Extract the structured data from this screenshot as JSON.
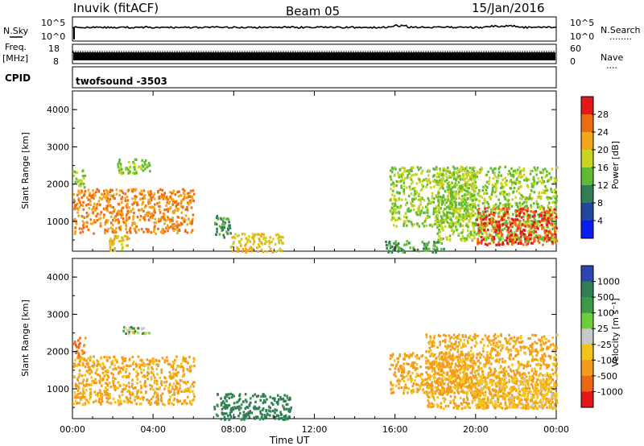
{
  "header": {
    "station": "Inuvik (fitACF)",
    "beam": "Beam 05",
    "date": "15/Jan/2016"
  },
  "strip_labels": {
    "nsky": "N.Sky",
    "nsky_top": "10^5",
    "nsky_bottom": "10^0",
    "nsearch": "N.Search",
    "nsearch_dots": "........",
    "nsearch_top": "10^5",
    "nsearch_bottom": "10^0",
    "freq_line1": "Freq.",
    "freq_line2": "[MHz]",
    "freq_top": "18",
    "freq_bottom": "8",
    "nave": "Nave",
    "nave_dots": "....",
    "nave_top": "60",
    "nave_bottom": "0",
    "cpid": "CPID",
    "cpid_value": "twofsound -3503"
  },
  "colors": {
    "noise_line": "#000000",
    "frame": "#000000"
  },
  "chart_data": [
    {
      "type": "heatmap",
      "title": "",
      "xlabel": "",
      "ylabel": "Slant Range [km]",
      "x_ticks": [
        "00:00",
        "04:00",
        "08:00",
        "12:00",
        "16:00",
        "20:00",
        "00:00"
      ],
      "y_ticks": [
        "1000",
        "2000",
        "3000",
        "4000"
      ],
      "ylim": [
        200,
        4500
      ],
      "colorbar": {
        "label": "Power [dB]",
        "ticks": [
          "4",
          "8",
          "12",
          "16",
          "20",
          "24",
          "28"
        ],
        "colors": [
          "#0a1cf0",
          "#23469d",
          "#2f7e54",
          "#60bb34",
          "#c9d422",
          "#f3a51b",
          "#f06a12",
          "#e41818"
        ]
      },
      "regions": [
        {
          "t0": 0.0,
          "t1": 6.0,
          "r0": 700,
          "r1": 1900,
          "value": 24
        },
        {
          "t0": 0.0,
          "t1": 0.6,
          "r0": 1900,
          "r1": 2400,
          "value": 16
        },
        {
          "t0": 1.8,
          "t1": 2.8,
          "r0": 250,
          "r1": 650,
          "value": 20
        },
        {
          "t0": 2.2,
          "t1": 3.8,
          "r0": 2300,
          "r1": 2700,
          "value": 16
        },
        {
          "t0": 7.0,
          "t1": 7.8,
          "r0": 600,
          "r1": 1200,
          "value": 12
        },
        {
          "t0": 7.8,
          "t1": 10.4,
          "r0": 200,
          "r1": 700,
          "value": 20
        },
        {
          "t0": 15.5,
          "t1": 18.5,
          "r0": 200,
          "r1": 500,
          "value": 12
        },
        {
          "t0": 15.7,
          "t1": 20.0,
          "r0": 900,
          "r1": 2500,
          "value": 16
        },
        {
          "t0": 18.0,
          "t1": 24.0,
          "r0": 500,
          "r1": 2500,
          "value": 16
        },
        {
          "t0": 20.0,
          "t1": 24.0,
          "r0": 400,
          "r1": 1400,
          "value": 28
        }
      ]
    },
    {
      "type": "heatmap",
      "title": "",
      "xlabel": "Time UT",
      "ylabel": "Slant Range [km]",
      "x_ticks": [
        "00:00",
        "04:00",
        "08:00",
        "12:00",
        "16:00",
        "20:00",
        "00:00"
      ],
      "y_ticks": [
        "1000",
        "2000",
        "3000",
        "4000"
      ],
      "ylim": [
        200,
        4500
      ],
      "colorbar": {
        "label": "Velocity [m s⁻¹]",
        "ticks": [
          "1000",
          "500",
          "100",
          "25",
          "-25",
          "-100",
          "-500",
          "-1000"
        ],
        "colors": [
          "#2a46b3",
          "#2f7e54",
          "#3c9a45",
          "#6bcf3a",
          "#c8c8c8",
          "#f4c31a",
          "#f39b1a",
          "#ef6512",
          "#e41818"
        ]
      },
      "regions": [
        {
          "t0": 0.0,
          "t1": 6.0,
          "r0": 600,
          "r1": 1900,
          "value": -300
        },
        {
          "t0": 0.0,
          "t1": 0.6,
          "r0": 1900,
          "r1": 2400,
          "value": -500
        },
        {
          "t0": 2.2,
          "t1": 3.8,
          "r0": 2500,
          "r1": 2700,
          "value": 0
        },
        {
          "t0": 7.0,
          "t1": 10.8,
          "r0": 200,
          "r1": 900,
          "value": 200
        },
        {
          "t0": 15.7,
          "t1": 20.0,
          "r0": 900,
          "r1": 2000,
          "value": -300
        },
        {
          "t0": 17.5,
          "t1": 24.0,
          "r0": 500,
          "r1": 2500,
          "value": -300
        },
        {
          "t0": 20.0,
          "t1": 24.0,
          "r0": 500,
          "r1": 1400,
          "value": -200
        }
      ]
    }
  ]
}
